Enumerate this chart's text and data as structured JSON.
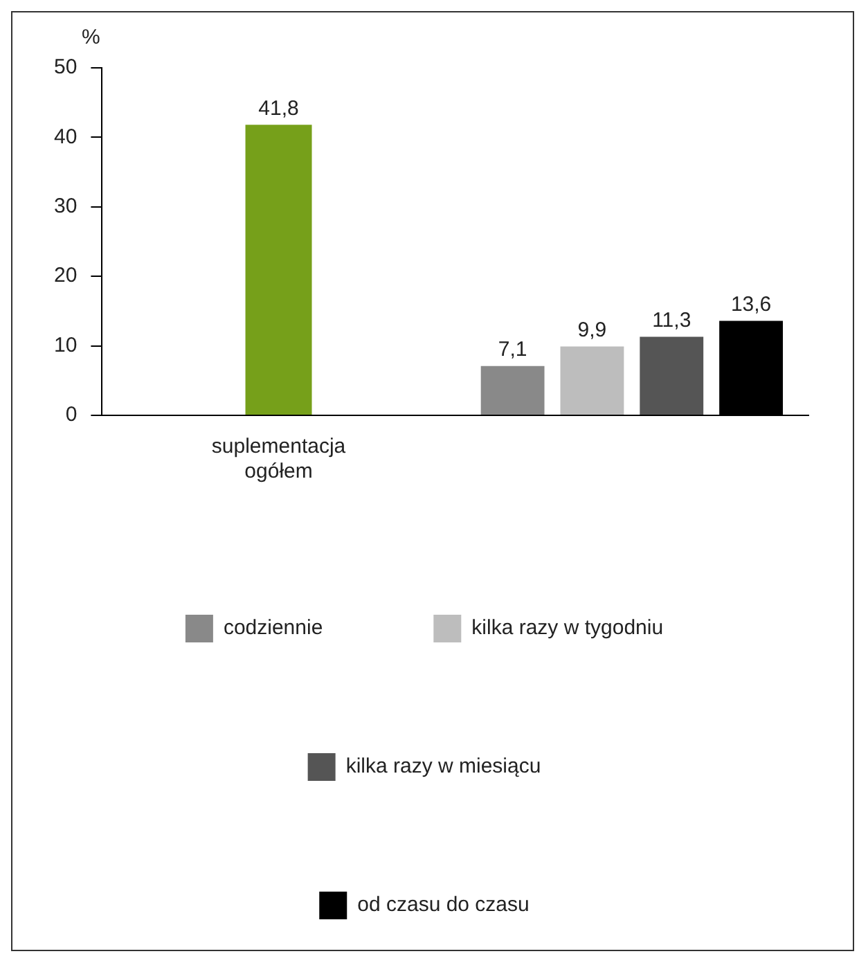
{
  "chart_data": {
    "type": "bar",
    "ylabel": "%",
    "categories": [
      "suplementacja ogółem",
      null
    ],
    "series": [
      {
        "color": "#76a01a",
        "values": [
          41.8,
          null
        ],
        "value_labels": [
          "41,8",
          null
        ]
      },
      {
        "name": "codziennie",
        "color": "#898989",
        "values": [
          null,
          7.1
        ],
        "value_labels": [
          null,
          "7,1"
        ]
      },
      {
        "name": "kilka razy w tygodniu",
        "color": "#bdbdbd",
        "values": [
          null,
          9.9
        ],
        "value_labels": [
          null,
          "9,9"
        ]
      },
      {
        "name": "kilka razy w miesiącu",
        "color": "#555555",
        "values": [
          null,
          11.3
        ],
        "value_labels": [
          null,
          "11,3"
        ]
      },
      {
        "name": "od czasu do czasu",
        "color": "#000000",
        "values": [
          null,
          13.6
        ],
        "value_labels": [
          null,
          "13,6"
        ]
      }
    ],
    "ylim": [
      0,
      50
    ],
    "yticks": [
      0,
      10,
      20,
      30,
      40,
      50
    ],
    "grid": false,
    "legend": "bottom"
  }
}
